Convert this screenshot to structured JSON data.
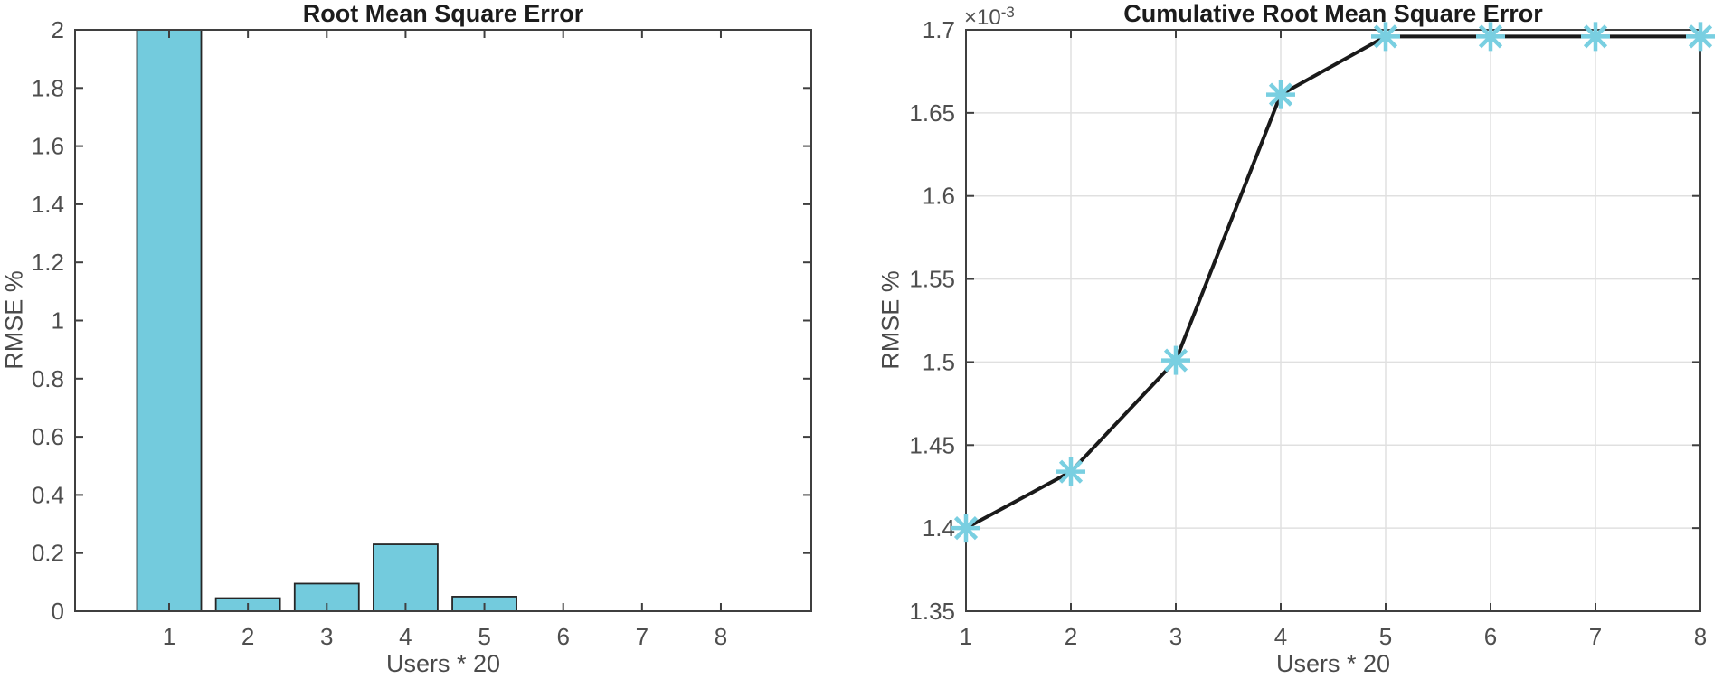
{
  "figure": {
    "background_color": "#ffffff"
  },
  "style": {
    "axis_color": "#3f3f3f",
    "tick_label_color": "#4e4e4e",
    "title_color": "#1c1c1c",
    "grid_color": "#e0e0e0",
    "bar_fill_color": "#73CBDD",
    "bar_edge_color": "#262626",
    "line_color": "#1a1a1a",
    "marker_color": "#79CFE1"
  },
  "chart_data": [
    {
      "type": "bar",
      "title": "Root Mean Square Error",
      "xlabel": "Users * 20",
      "ylabel": "RMSE %",
      "categories": [
        1,
        2,
        3,
        4,
        5,
        6,
        7,
        8
      ],
      "values": [
        2,
        0.045,
        0.095,
        0.23,
        0.05,
        0,
        0,
        0
      ],
      "note": "First bar is clipped at the top of the axis (actual value exceeds ylim max of 2)",
      "ylim": [
        0,
        2
      ],
      "yticks": [
        0,
        0.2,
        0.4,
        0.6,
        0.8,
        1,
        1.2,
        1.4,
        1.6,
        1.8,
        2
      ],
      "xticks": [
        1,
        2,
        3,
        4,
        5,
        6,
        7,
        8
      ],
      "grid": false,
      "legend": "none",
      "bar_color": "#73CBDD",
      "bar_edge_color": "#262626"
    },
    {
      "type": "line",
      "title": "Cumulative Root Mean Square Error",
      "xlabel": "Users * 20",
      "ylabel": "RMSE %",
      "exp_base": "×10",
      "exp_power": "-3",
      "x": [
        1,
        2,
        3,
        4,
        5,
        6,
        7,
        8
      ],
      "y_times_1e3": [
        1.4,
        1.434,
        1.501,
        1.661,
        1.696,
        1.696,
        1.696,
        1.696
      ],
      "y_scale": "1e-3",
      "xlim": [
        1,
        8
      ],
      "ylim_times_1e3": [
        1.35,
        1.7
      ],
      "yticks_times_1e3": [
        1.35,
        1.4,
        1.45,
        1.5,
        1.55,
        1.6,
        1.65,
        1.7
      ],
      "xticks": [
        1,
        2,
        3,
        4,
        5,
        6,
        7,
        8
      ],
      "grid": true,
      "legend": "none",
      "marker": "asterisk",
      "marker_color": "#79CFE1",
      "line_color": "#1a1a1a"
    }
  ]
}
